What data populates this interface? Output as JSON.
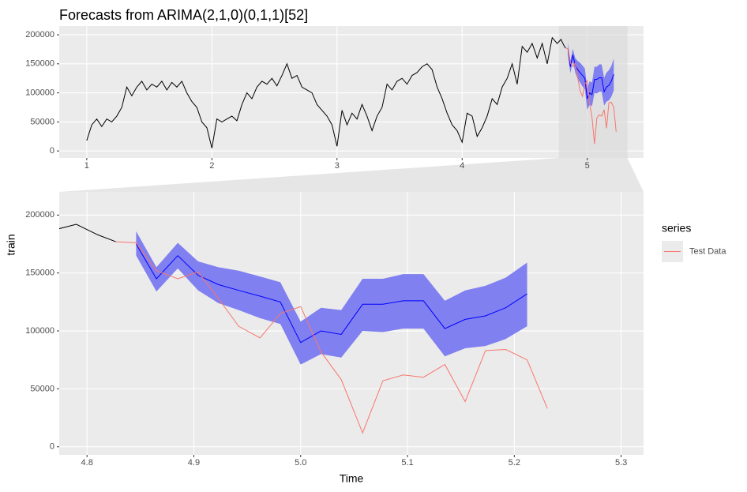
{
  "chart_data": {
    "type": "line",
    "title": "Forecasts from ARIMA(2,1,0)(0,1,1)[52]",
    "x_label": "Time",
    "y_label": "train",
    "legend_title": "series",
    "grid": true,
    "panels": [
      {
        "xlim": [
          0.78,
          5.45
        ],
        "ylim": [
          -12000,
          215000
        ],
        "xticks": [
          1,
          2,
          3,
          4,
          5
        ],
        "yticks": [
          0,
          50000,
          100000,
          150000,
          200000
        ]
      },
      {
        "xlim": [
          4.774,
          5.321
        ],
        "ylim": [
          -7000,
          220000
        ],
        "xticks": [
          4.8,
          4.9,
          {
            "value": 5,
            "label": "5.0"
          },
          5.1,
          5.2,
          5.3
        ],
        "yticks": [
          0,
          50000,
          100000,
          150000,
          200000
        ]
      }
    ],
    "series": [
      {
        "color": "#000000",
        "x": [
          1.0,
          1.04,
          1.08,
          1.12,
          1.16,
          1.2,
          1.24,
          1.28,
          1.32,
          1.36,
          1.4,
          1.44,
          1.48,
          1.52,
          1.56,
          1.6,
          1.64,
          1.68,
          1.72,
          1.76,
          1.8,
          1.84,
          1.88,
          1.92,
          1.96,
          2.0,
          2.04,
          2.08,
          2.12,
          2.16,
          2.2,
          2.24,
          2.28,
          2.32,
          2.36,
          2.4,
          2.44,
          2.48,
          2.52,
          2.56,
          2.6,
          2.64,
          2.68,
          2.72,
          2.76,
          2.8,
          2.84,
          2.88,
          2.92,
          2.96,
          3.0,
          3.04,
          3.08,
          3.12,
          3.16,
          3.2,
          3.24,
          3.28,
          3.32,
          3.36,
          3.4,
          3.44,
          3.48,
          3.52,
          3.56,
          3.6,
          3.64,
          3.68,
          3.72,
          3.76,
          3.8,
          3.84,
          3.88,
          3.92,
          3.96,
          4.0,
          4.04,
          4.08,
          4.12,
          4.16,
          4.2,
          4.24,
          4.28,
          4.32,
          4.36,
          4.4,
          4.44,
          4.48,
          4.52,
          4.56,
          4.6,
          4.64,
          4.68,
          4.72,
          4.76,
          4.79,
          4.81,
          4.827
        ],
        "values": [
          18000,
          45000,
          55000,
          42000,
          55000,
          50000,
          60000,
          75000,
          110000,
          95000,
          110000,
          120000,
          105000,
          115000,
          110000,
          120000,
          105000,
          118000,
          110000,
          120000,
          100000,
          85000,
          75000,
          50000,
          40000,
          5000,
          55000,
          50000,
          55000,
          60000,
          52000,
          80000,
          100000,
          90000,
          110000,
          120000,
          115000,
          125000,
          112000,
          130000,
          150000,
          125000,
          130000,
          110000,
          105000,
          100000,
          80000,
          70000,
          60000,
          45000,
          8000,
          70000,
          45000,
          65000,
          55000,
          80000,
          60000,
          35000,
          60000,
          75000,
          115000,
          105000,
          120000,
          125000,
          115000,
          130000,
          135000,
          145000,
          150000,
          140000,
          110000,
          90000,
          65000,
          45000,
          35000,
          15000,
          65000,
          60000,
          25000,
          40000,
          60000,
          90000,
          80000,
          110000,
          125000,
          150000,
          115000,
          180000,
          170000,
          185000,
          160000,
          185000,
          150000,
          195000,
          185000,
          192000,
          183000,
          177000
        ]
      },
      {
        "color": "#0000ff",
        "band_color": "#8080f0",
        "x": [
          4.846,
          4.865,
          4.885,
          4.904,
          4.923,
          4.942,
          4.962,
          4.981,
          5.0,
          5.019,
          5.038,
          5.058,
          5.077,
          5.096,
          5.115,
          5.135,
          5.154,
          5.173,
          5.192,
          5.212
        ],
        "values": [
          175000,
          145000,
          165000,
          148000,
          140000,
          135000,
          130000,
          125000,
          90000,
          100000,
          97000,
          123000,
          123000,
          126000,
          126000,
          102000,
          110000,
          113000,
          120000,
          132000
        ],
        "lower": [
          165000,
          134000,
          154000,
          135000,
          124000,
          118000,
          111000,
          106000,
          71000,
          80000,
          77000,
          100000,
          99000,
          102000,
          102000,
          78000,
          85000,
          87000,
          93000,
          104000
        ],
        "upper": [
          186000,
          155000,
          176000,
          160000,
          155000,
          152000,
          147000,
          142000,
          108000,
          120000,
          118000,
          145000,
          145000,
          149000,
          149000,
          126000,
          135000,
          139000,
          146000,
          159000
        ]
      },
      {
        "name": "Test Data",
        "color": "#f8766d",
        "x": [
          4.827,
          4.846,
          4.865,
          4.885,
          4.904,
          4.923,
          4.942,
          4.962,
          4.981,
          5.0,
          5.019,
          5.038,
          5.058,
          5.077,
          5.096,
          5.115,
          5.135,
          5.154,
          5.173,
          5.192,
          5.212,
          5.231
        ],
        "values": [
          177000,
          176000,
          152000,
          145000,
          151000,
          128000,
          104000,
          94000,
          115000,
          121000,
          82000,
          58000,
          12000,
          57000,
          62000,
          60000,
          71000,
          39000,
          83000,
          84000,
          75000,
          33000
        ]
      }
    ]
  }
}
